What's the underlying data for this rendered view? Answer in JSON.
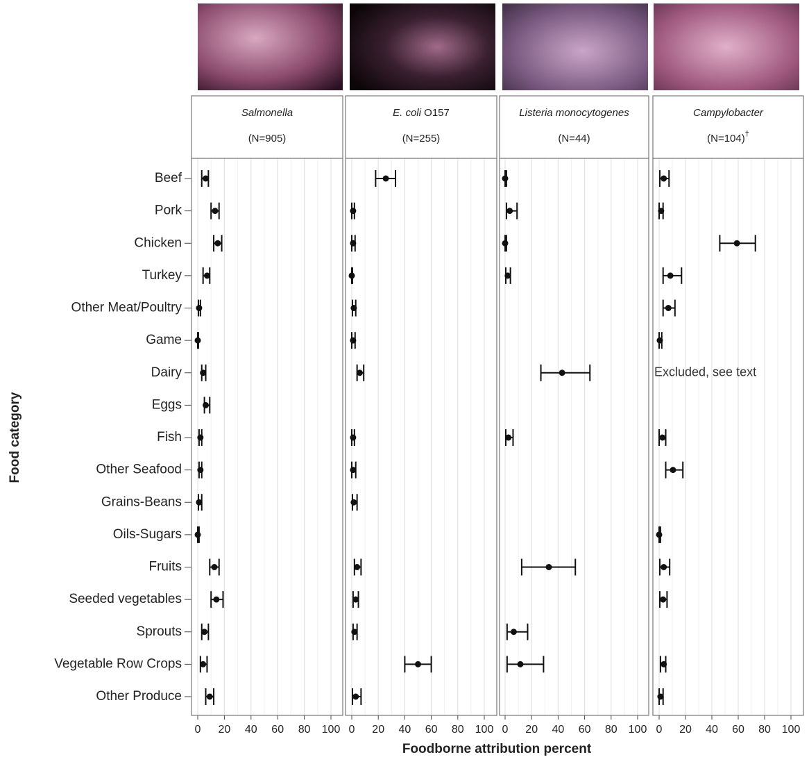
{
  "chart_data": {
    "type": "dot-errorbar",
    "x_label": "Foodborne attribution percent",
    "y_label": "Food category",
    "categories": [
      "Beef",
      "Pork",
      "Chicken",
      "Turkey",
      "Other Meat/Poultry",
      "Game",
      "Dairy",
      "Eggs",
      "Fish",
      "Other Seafood",
      "Grains-Beans",
      "Oils-Sugars",
      "Fruits",
      "Seeded vegetables",
      "Sprouts",
      "Vegetable Row Crops",
      "Other Produce"
    ],
    "grid": true,
    "minor_grid": [
      10,
      30,
      50,
      70,
      90
    ],
    "color": "#111111",
    "panels": [
      {
        "title": "Salmonella",
        "subtitle": "(N=905)",
        "xlim": [
          0,
          100
        ],
        "xticks": [
          0,
          20,
          40,
          60,
          80,
          100
        ],
        "values": [
          6,
          13,
          15,
          7,
          1,
          0,
          4,
          6,
          2,
          2,
          1,
          0,
          12.5,
          14,
          5,
          4,
          9
        ],
        "lower": [
          3,
          10,
          12,
          4,
          0.5,
          0,
          3,
          5,
          1,
          1,
          0.5,
          0,
          9,
          10,
          3,
          2,
          6
        ],
        "upper": [
          8,
          16,
          18,
          9,
          2,
          0.5,
          6,
          9,
          3,
          3,
          3,
          1,
          16,
          19,
          8,
          7,
          12
        ]
      },
      {
        "title": "E. coli",
        "title_rest": "O157",
        "subtitle": "(N=255)",
        "xlim": [
          0,
          100
        ],
        "xticks": [
          0,
          20,
          40,
          60,
          80,
          100
        ],
        "values": [
          25.7,
          1,
          1,
          0,
          1.5,
          1,
          6,
          null,
          1,
          1,
          1.5,
          null,
          4,
          3,
          2,
          50,
          3
        ],
        "lower": [
          18,
          0,
          0,
          0,
          0.5,
          0,
          4,
          null,
          0,
          0,
          0.5,
          null,
          2,
          1,
          1,
          40,
          0.5
        ],
        "upper": [
          33,
          2,
          2.5,
          0.5,
          3,
          2.5,
          9,
          null,
          2,
          3,
          4,
          null,
          7,
          5,
          4,
          60,
          7
        ]
      },
      {
        "title": "Listeria monocytogenes",
        "subtitle": "(N=44)",
        "xlim": [
          0,
          100
        ],
        "xticks": [
          0,
          20,
          40,
          60,
          80,
          100
        ],
        "values": [
          0,
          3.5,
          0,
          2,
          null,
          null,
          43,
          null,
          2.5,
          null,
          null,
          null,
          33,
          null,
          6.5,
          11.5,
          null
        ],
        "lower": [
          0,
          1,
          0,
          0.5,
          null,
          null,
          27,
          null,
          0.5,
          null,
          null,
          null,
          12.5,
          null,
          1.5,
          1.5,
          null
        ],
        "upper": [
          1,
          9,
          1,
          4,
          null,
          null,
          64,
          null,
          6,
          null,
          null,
          null,
          53,
          null,
          17,
          29,
          null
        ]
      },
      {
        "title": "Campylobacter",
        "subtitle": "(N=104)",
        "note_mark": "†",
        "xlim": [
          0,
          100
        ],
        "xticks": [
          0,
          20,
          40,
          60,
          80,
          100
        ],
        "annotation": "Excluded, see text",
        "annotation_category": 6,
        "values": [
          3.5,
          1.5,
          59,
          8.5,
          7,
          0.5,
          null,
          null,
          2.5,
          10.5,
          null,
          0,
          3.5,
          3,
          null,
          3.5,
          1
        ],
        "lower": [
          0.5,
          0,
          46,
          3,
          3,
          0,
          null,
          null,
          0,
          5,
          null,
          0,
          0.5,
          0.5,
          null,
          1,
          0
        ],
        "upper": [
          7.5,
          3,
          73,
          17,
          12,
          2,
          null,
          null,
          5,
          18,
          null,
          1,
          8,
          6,
          null,
          5,
          3
        ]
      }
    ]
  }
}
